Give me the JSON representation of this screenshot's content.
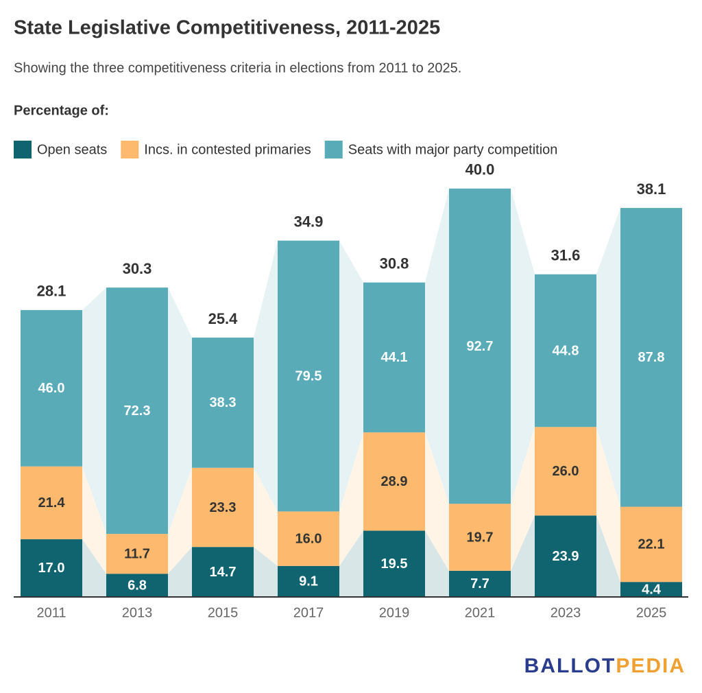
{
  "chart_data": {
    "type": "bar",
    "title": "State Legislative Competitiveness, 2011-2025",
    "subtitle": "Showing the three competitiveness criteria in elections from 2011 to 2025.",
    "legend_title": "Percentage of:",
    "categories": [
      "2011",
      "2013",
      "2015",
      "2017",
      "2019",
      "2021",
      "2023",
      "2025"
    ],
    "totals": [
      28.1,
      30.3,
      25.4,
      34.9,
      30.8,
      40.0,
      31.6,
      38.1
    ],
    "totals_labels": [
      "28.1",
      "30.3",
      "25.4",
      "34.9",
      "30.8",
      "40.0",
      "31.6",
      "38.1"
    ],
    "series": [
      {
        "name": "Open seats",
        "color": "#0f6470",
        "tint": "#d9e6e8",
        "values": [
          17.0,
          6.8,
          14.7,
          9.1,
          19.5,
          7.7,
          23.9,
          4.4
        ],
        "value_labels": [
          "17.0",
          "6.8",
          "14.7",
          "9.1",
          "19.5",
          "7.7",
          "23.9",
          "4.4"
        ]
      },
      {
        "name": "Incs. in contested primaries",
        "color": "#fdb96e",
        "tint": "#fff4e6",
        "values": [
          21.4,
          11.7,
          23.3,
          16.0,
          28.9,
          19.7,
          26.0,
          22.1
        ],
        "value_labels": [
          "21.4",
          "11.7",
          "23.3",
          "16.0",
          "28.9",
          "19.7",
          "26.0",
          "22.1"
        ]
      },
      {
        "name": "Seats with major party competition",
        "color": "#5aabb8",
        "tint": "#e6f2f4",
        "values": [
          46.0,
          72.3,
          38.3,
          79.5,
          44.1,
          92.7,
          44.8,
          87.8
        ],
        "value_labels": [
          "46.0",
          "72.3",
          "38.3",
          "79.5",
          "44.1",
          "92.7",
          "44.8",
          "87.8"
        ]
      }
    ],
    "logo": [
      "BALLOT",
      "PEDIA"
    ]
  }
}
